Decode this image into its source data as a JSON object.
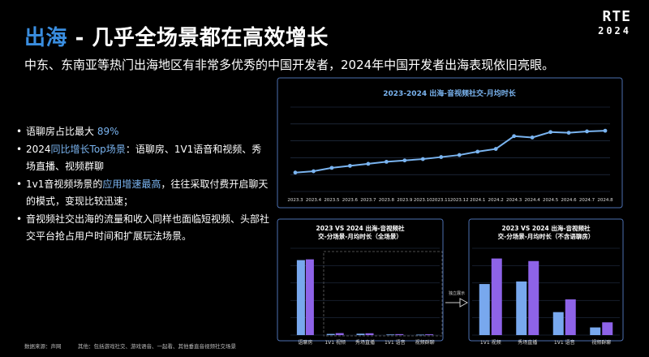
{
  "header": {
    "title_accent": "出海",
    "title_rest": " - 几乎全场景都在高效增长",
    "subtitle": "中东、东南亚等热门出海地区有非常多优秀的中国开发者，2024年中国开发者出海表现依旧亮眼。",
    "logo_line1": "RTE",
    "logo_line2": "2024"
  },
  "bullets": [
    {
      "before": "语聊房占比最大 ",
      "highlight": "89%",
      "after": ""
    },
    {
      "before": "2024",
      "highlight": "同比增长Top场景",
      "after": "：语聊房、1V1语音和视频、秀场直播、视频群聊"
    },
    {
      "before": "1v1音视频场景的",
      "highlight": "应用增速最高",
      "after": "，往往采取付费开启聊天的模式，变现比较迅速；"
    },
    {
      "before": "音视频社交出海的流量和收入同样也面临短视频、头部社交平台抢占用户时间和扩展玩法场景。",
      "highlight": "",
      "after": ""
    }
  ],
  "footer": {
    "source": "数据来源：声网",
    "note": "其他：包括游戏社交、游戏语音、一起看、其他垂直音视频社交场景"
  },
  "annotation": {
    "split_label": "独立展示"
  },
  "colors": {
    "accent": "#3a8ee0",
    "line": "#7ab4f0",
    "bar_2023": "#78a8ee",
    "bar_2024": "#8e63e8"
  },
  "chart_data": [
    {
      "type": "line",
      "title": "2023-2024 出海-音视频社交-月均时长",
      "x": [
        "2023.3",
        "2023.4",
        "2023.5",
        "2023.6",
        "2023.7",
        "2023.8",
        "2023.9",
        "2023.10",
        "2023.11",
        "2023.12",
        "2024.1",
        "2024.2",
        "2024.3",
        "2024.4",
        "2024.5",
        "2024.6",
        "2024.7",
        "2024.8"
      ],
      "values": [
        28,
        30,
        35,
        38,
        41,
        44,
        46,
        48,
        51,
        54,
        59,
        63,
        82,
        80,
        88,
        87,
        89,
        90
      ],
      "ylim": [
        0,
        125
      ],
      "grid": true
    },
    {
      "type": "bar",
      "title": "2023 VS 2024 出海-音视频社交-分场景-月均时长（全场景）",
      "categories": [
        "语聊房",
        "1V1 视频",
        "秀场直播",
        "1V1 语音",
        "视频群聊"
      ],
      "series": [
        {
          "values": [
            95,
            1.5,
            1.8,
            0.8,
            0.6
          ]
        },
        {
          "values": [
            96,
            2.5,
            2.3,
            1.2,
            1.0
          ]
        }
      ],
      "ylim": [
        0,
        110
      ],
      "grid": true
    },
    {
      "type": "bar",
      "title": "2023 VS 2024 出海-音视频社交-分场景-月均时长（不含语聊房）",
      "categories": [
        "1V1 视频",
        "秀场直播",
        "1V1 语音",
        "视频群聊"
      ],
      "series": [
        {
          "values": [
            2.0,
            2.1,
            0.9,
            0.3
          ]
        },
        {
          "values": [
            3.0,
            2.9,
            1.4,
            0.5
          ]
        }
      ],
      "ylim": [
        0,
        3.4
      ],
      "grid": true
    }
  ]
}
